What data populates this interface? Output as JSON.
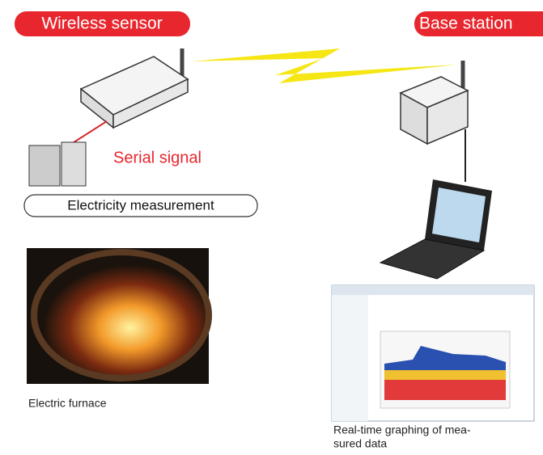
{
  "labels": {
    "sensor": "Wireless sensor",
    "base": "Base station"
  },
  "signal": "Serial signal",
  "measurement": "Electricity measurement",
  "furnace_caption": "Electric furnace",
  "graph_caption": [
    "Real-time graphing of mea-",
    "sured data"
  ]
}
